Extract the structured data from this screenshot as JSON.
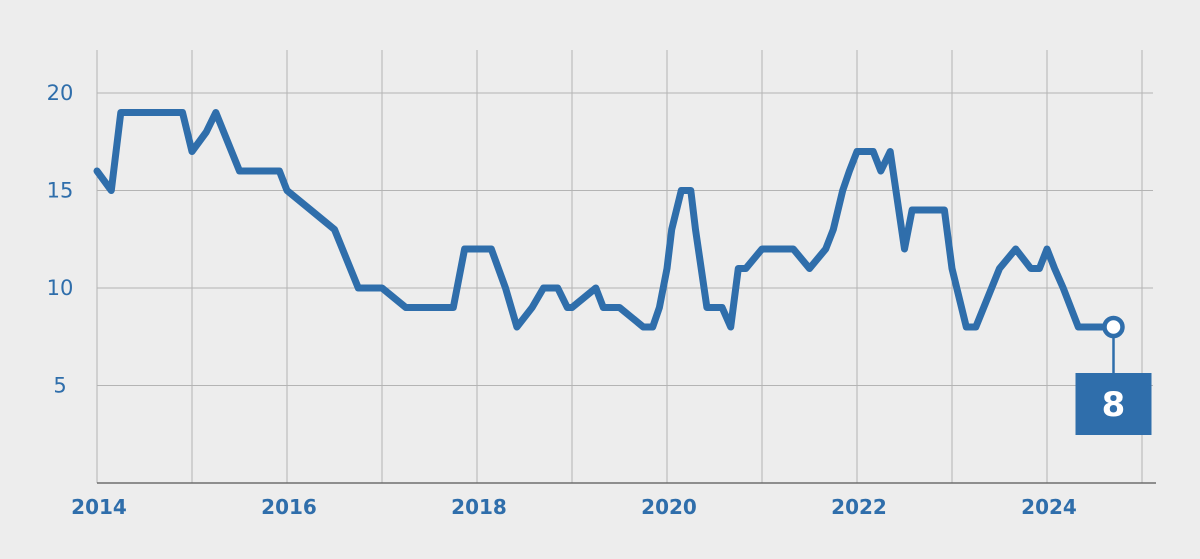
{
  "chart_data": {
    "type": "line",
    "title": "",
    "xlabel": "",
    "ylabel": "",
    "xlim": [
      2014,
      2025.1
    ],
    "ylim": [
      0,
      22
    ],
    "grid": true,
    "xticks": [
      "2014",
      "2016",
      "2018",
      "2020",
      "2022",
      "2024"
    ],
    "yticks": [
      "5",
      "10",
      "15",
      "20"
    ],
    "colors": {
      "line": "#2f6eab",
      "grid": "#b4b4b4",
      "background": "#ededed",
      "callout": "#2f6eab"
    },
    "series": [
      {
        "name": "",
        "x": [
          2014.0,
          2014.15,
          2014.25,
          2014.5,
          2014.75,
          2014.9,
          2015.0,
          2015.15,
          2015.25,
          2015.5,
          2015.75,
          2015.92,
          2016.0,
          2016.25,
          2016.5,
          2016.75,
          2016.92,
          2017.0,
          2017.25,
          2017.4,
          2017.5,
          2017.75,
          2017.87,
          2018.0,
          2018.15,
          2018.3,
          2018.42,
          2018.58,
          2018.7,
          2018.85,
          2018.95,
          2019.0,
          2019.25,
          2019.33,
          2019.5,
          2019.75,
          2019.85,
          2019.92,
          2020.0,
          2020.05,
          2020.15,
          2020.25,
          2020.3,
          2020.42,
          2020.58,
          2020.67,
          2020.75,
          2020.83,
          2021.0,
          2021.33,
          2021.5,
          2021.67,
          2021.75,
          2021.85,
          2021.92,
          2022.0,
          2022.17,
          2022.25,
          2022.35,
          2022.5,
          2022.58,
          2022.75,
          2022.92,
          2023.0,
          2023.15,
          2023.25,
          2023.5,
          2023.67,
          2023.83,
          2023.92,
          2024.0,
          2024.08,
          2024.17,
          2024.33,
          2024.42,
          2024.58,
          2024.7
        ],
        "y": [
          16,
          15,
          19,
          19,
          19,
          19,
          17,
          18,
          19,
          16,
          16,
          16,
          15,
          14,
          13,
          10,
          10,
          10,
          9,
          9,
          9,
          9,
          12,
          12,
          12,
          10,
          8,
          9,
          10,
          10,
          9,
          9,
          10,
          9,
          9,
          8,
          8,
          9,
          11,
          13,
          15,
          15,
          13,
          9,
          9,
          8,
          11,
          11,
          12,
          12,
          11,
          12,
          13,
          15,
          16,
          17,
          17,
          16,
          17,
          12,
          14,
          14,
          14,
          11,
          8,
          8,
          11,
          12,
          11,
          11,
          12,
          11,
          10,
          8,
          8,
          8,
          8
        ],
        "label": "8"
      }
    ]
  }
}
